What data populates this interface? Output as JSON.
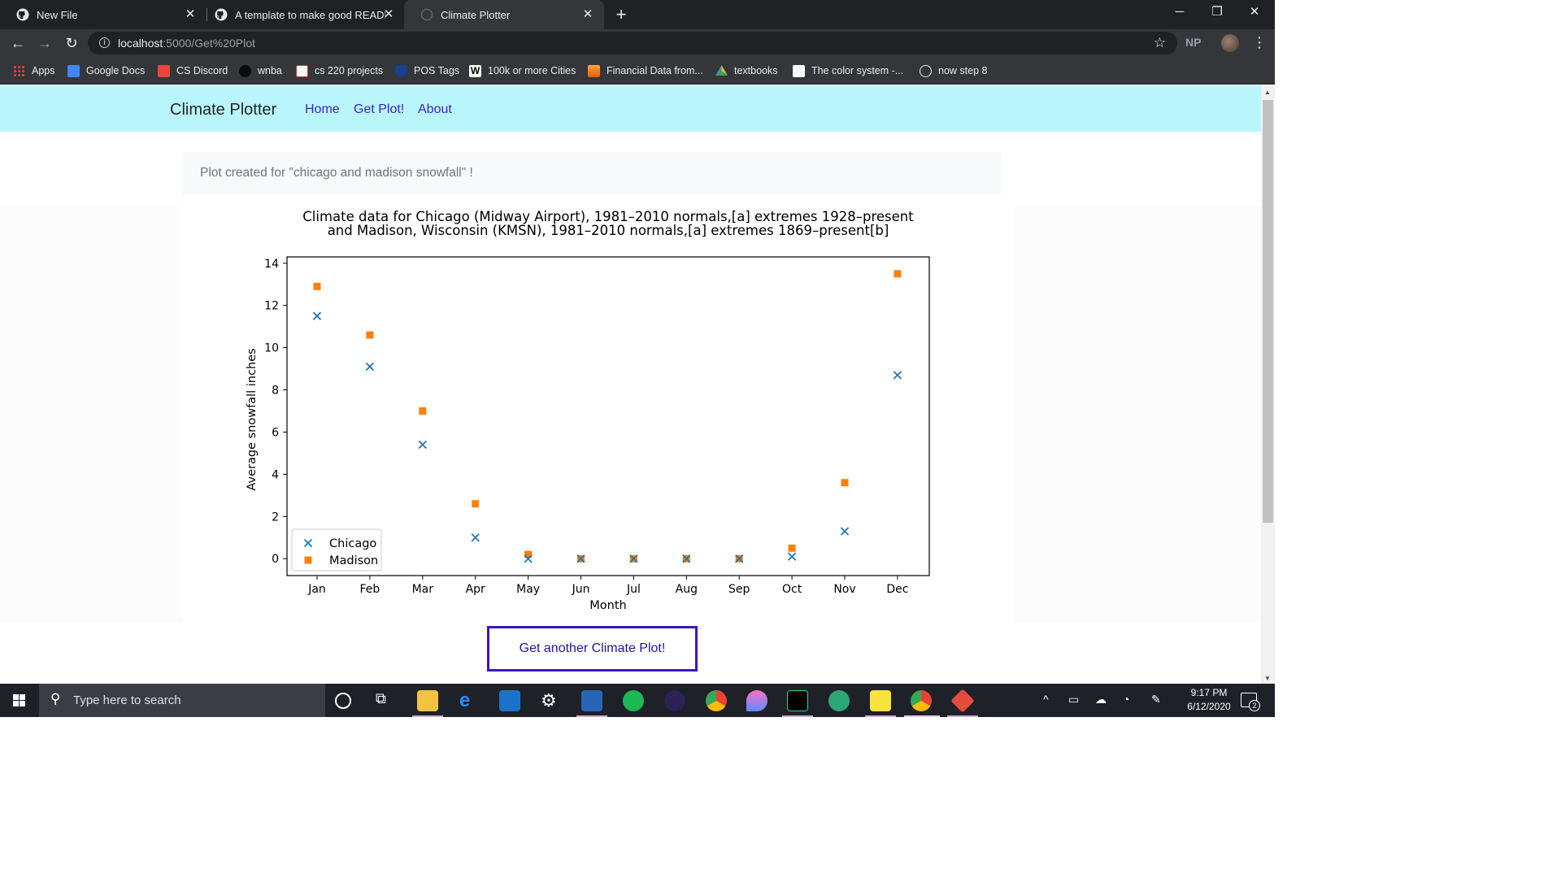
{
  "browser": {
    "tabs": [
      {
        "title": "New File",
        "active": false
      },
      {
        "title": "A template to make good READM",
        "active": false
      },
      {
        "title": "Climate Plotter",
        "active": true
      }
    ],
    "url_host": "localhost",
    "url_path": ":5000/Get%20Plot",
    "profile_initials": "NP",
    "bookmarks": [
      {
        "label": "Apps",
        "icon_color": "#e94235"
      },
      {
        "label": "Google Docs",
        "icon_color": "#4285f4"
      },
      {
        "label": "CS Discord",
        "icon_color": "#e8453c"
      },
      {
        "label": "wnba",
        "icon_color": "#111111"
      },
      {
        "label": "cs 220 projects",
        "icon_color": "#d93025"
      },
      {
        "label": "POS Tags",
        "icon_color": "#8ab4f8"
      },
      {
        "label": "100k or more Cities",
        "icon_color": "#ffffff"
      },
      {
        "label": "Financial Data from...",
        "icon_color": "#f4a742"
      },
      {
        "label": "textbooks",
        "icon_color": "#34a853"
      },
      {
        "label": "The color system -...",
        "icon_color": "#ffffff"
      },
      {
        "label": "now step 8",
        "icon_color": "#e8eaed"
      }
    ]
  },
  "app": {
    "brand": "Climate Plotter",
    "nav": [
      "Home",
      "Get Plot!",
      "About"
    ],
    "alert_text": "Plot created for \"chicago and madison snowfall\" !",
    "cta_label": "Get another Climate Plot!"
  },
  "chart_data": {
    "type": "scatter",
    "title": [
      "Climate data for Chicago (Midway Airport), 1981–2010 normals,[a] extremes 1928–present",
      "and Madison, Wisconsin (KMSN), 1981–2010 normals,[a] extremes 1869–present[b]"
    ],
    "xlabel": "Month",
    "ylabel": "Average snowfall inches",
    "categories": [
      "Jan",
      "Feb",
      "Mar",
      "Apr",
      "May",
      "Jun",
      "Jul",
      "Aug",
      "Sep",
      "Oct",
      "Nov",
      "Dec"
    ],
    "ylim": [
      -0.8,
      14.3
    ],
    "yticks": [
      0,
      2,
      4,
      6,
      8,
      10,
      12,
      14
    ],
    "grid": false,
    "legend_position": "lower-left",
    "series": [
      {
        "name": "Chicago",
        "marker": "x",
        "color": "#1f77b4",
        "values": [
          11.5,
          9.1,
          5.4,
          1.0,
          0.0,
          0.0,
          0.0,
          0.0,
          0.0,
          0.1,
          1.3,
          8.7
        ]
      },
      {
        "name": "Madison",
        "marker": "square",
        "color": "#ff7f0e",
        "values": [
          12.9,
          10.6,
          7.0,
          2.6,
          0.2,
          0.0,
          0.0,
          0.0,
          0.0,
          0.5,
          3.6,
          13.5
        ]
      }
    ]
  },
  "taskbar": {
    "search_placeholder": "Type here to search",
    "time": "9:17 PM",
    "date": "6/12/2020",
    "notification_count": "2"
  }
}
